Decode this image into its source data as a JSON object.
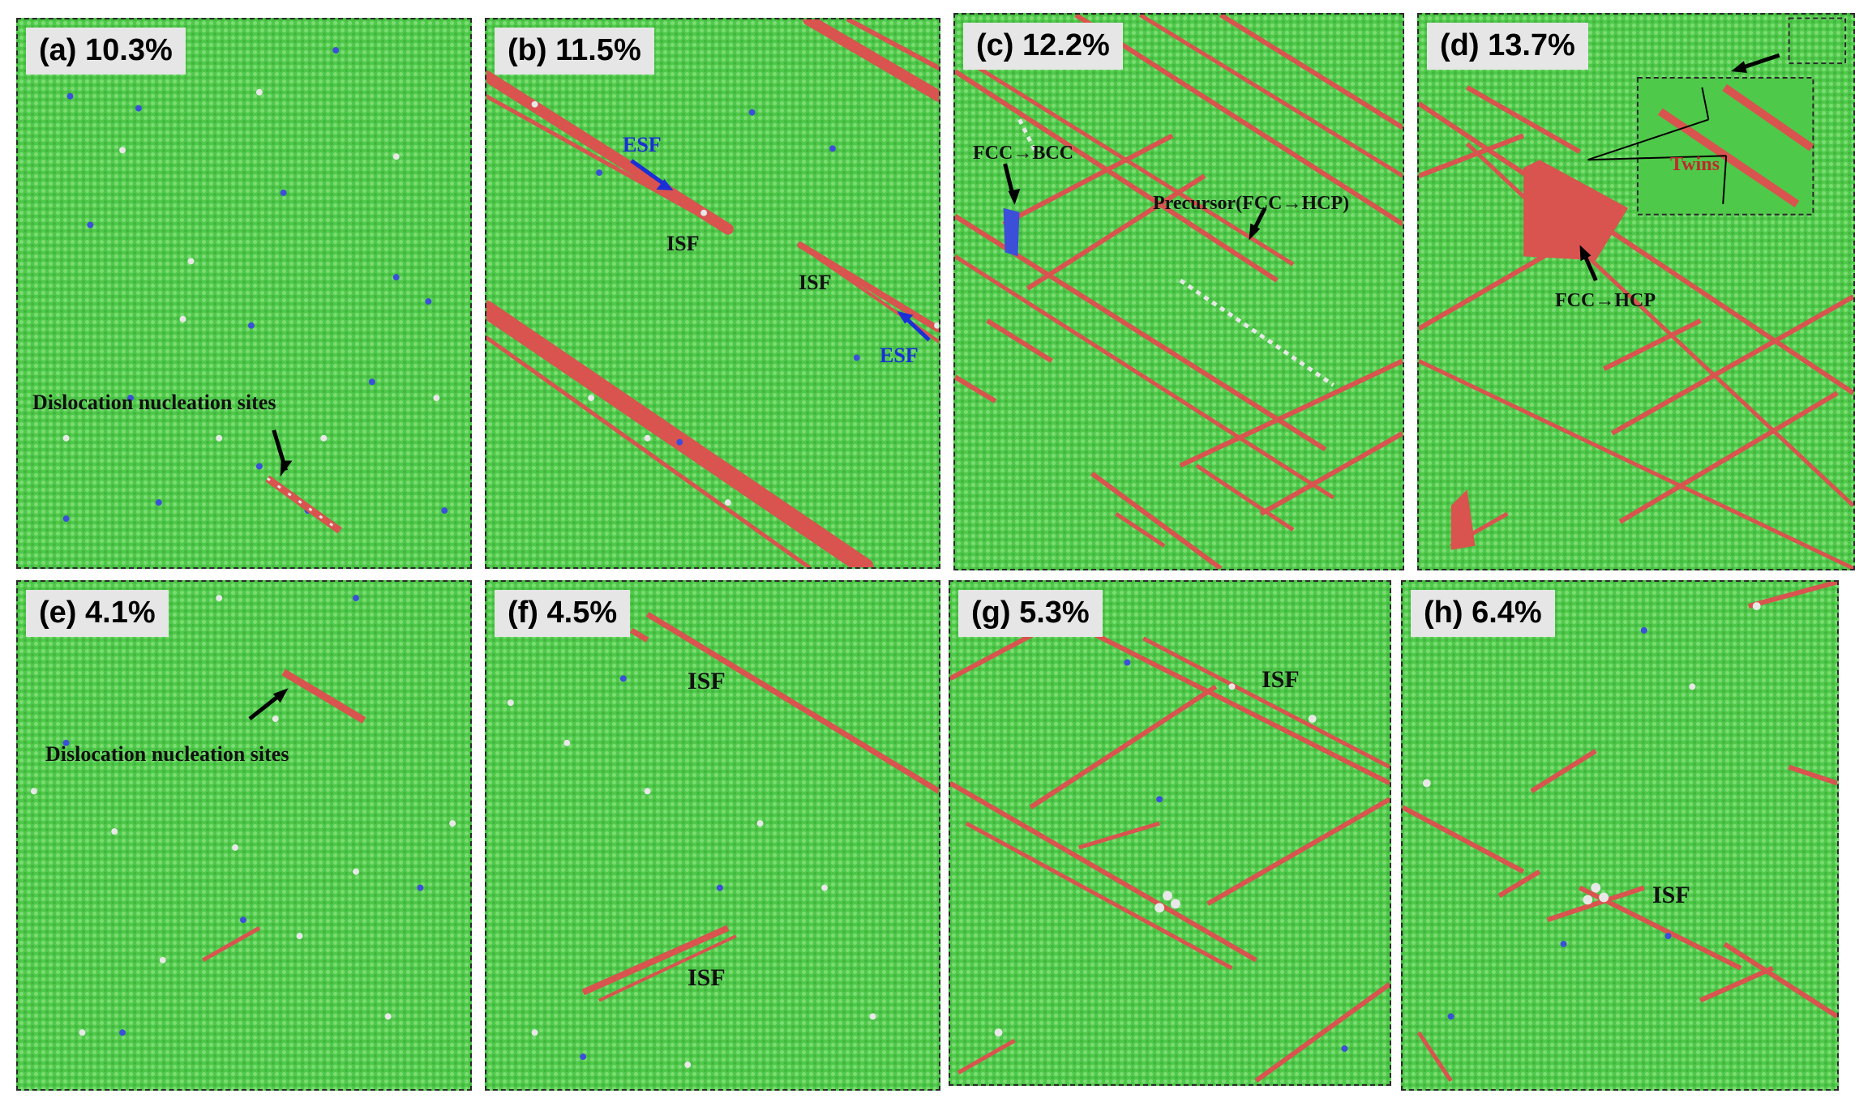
{
  "panels": [
    {
      "id": "a",
      "label": "(a) 10.3%",
      "annotations": [
        "Dislocation nucleation sites"
      ]
    },
    {
      "id": "b",
      "label": "(b) 11.5%",
      "annotations": [
        "ESF",
        "ISF",
        "ISF",
        "ESF"
      ]
    },
    {
      "id": "c",
      "label": "(c) 12.2%",
      "annotations": [
        "FCC→BCC",
        "Precursor(FCC→HCP)"
      ]
    },
    {
      "id": "d",
      "label": "(d) 13.7%",
      "annotations": [
        "Twins",
        "FCC→HCP"
      ]
    },
    {
      "id": "e",
      "label": "(e) 4.1%",
      "annotations": [
        "Dislocation nucleation sites"
      ]
    },
    {
      "id": "f",
      "label": "(f) 4.5%",
      "annotations": [
        "ISF",
        "ISF"
      ]
    },
    {
      "id": "g",
      "label": "(g) 5.3%",
      "annotations": [
        "ISF"
      ]
    },
    {
      "id": "h",
      "label": "(h) 6.4%",
      "annotations": [
        "ISF"
      ]
    }
  ],
  "colors": {
    "fcc": "#4fc94a",
    "hcp_stacking_fault": "#d9534f",
    "bcc": "#3b4fd8",
    "other": "#e8e8e8",
    "arrow": "#000000",
    "esf_arrow": "#1a2fd6"
  }
}
